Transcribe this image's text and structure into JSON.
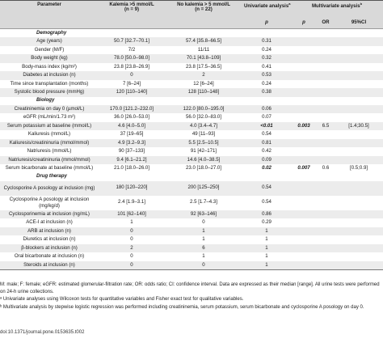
{
  "header": {
    "parameter": "Parameter",
    "kalemia_hi": "Kalemia >5 mmol/L",
    "n_hi": "(n = 9)",
    "kalemia_no": "No kalemia > 5 mmol/L",
    "n_no": "(n = 22)",
    "univariate": "Univariate analysis",
    "univariate_sup": "a",
    "multivariate": "Multivariate analysis",
    "multivariate_sup": "b",
    "p": "p",
    "p2": "p",
    "or": "OR",
    "ci": "95%CI"
  },
  "rows": [
    {
      "type": "section",
      "label": "Demography"
    },
    {
      "label": "Age (years)",
      "hi": "50.7 [32.7–70.1]",
      "no": "57.4 [35.8–66.5]",
      "p": "0.31",
      "mp": "",
      "or": "",
      "ci": ""
    },
    {
      "label": "Gender (M/F)",
      "hi": "7/2",
      "no": "11/11",
      "p": "0.24",
      "mp": "",
      "or": "",
      "ci": ""
    },
    {
      "label": "Body weight (kg)",
      "hi": "78.0 [50.0–98.0]",
      "no": "70.1 [43.8–109]",
      "p": "0.32",
      "mp": "",
      "or": "",
      "ci": ""
    },
    {
      "label": "Body-mass index (kg/m²)",
      "hi": "23.8 [23.8–26.9]",
      "no": "23.8 [17.5–36.5]",
      "p": "0.41",
      "mp": "",
      "or": "",
      "ci": ""
    },
    {
      "label": "Diabetes at inclusion (n)",
      "hi": "0",
      "no": "2",
      "p": "0.53",
      "mp": "",
      "or": "",
      "ci": ""
    },
    {
      "label": "Time since transplantation (months)",
      "hi": "7 [6–24]",
      "no": "12 [6–24]",
      "p": "0.24",
      "mp": "",
      "or": "",
      "ci": ""
    },
    {
      "label": "Systolic blood pressure (mmHg)",
      "hi": "120 [110–140]",
      "no": "128 [110–148]",
      "p": "0.38",
      "mp": "",
      "or": "",
      "ci": ""
    },
    {
      "type": "section",
      "label": "Biology"
    },
    {
      "label": "Creatininemia on day 0 (µmol/L)",
      "hi": "170.0 [121.2–232.0]",
      "no": "122.0 [80.0–195.0]",
      "p": "0.06",
      "mp": "",
      "or": "",
      "ci": ""
    },
    {
      "label": "eGFR (mL/min/1.73 m²)",
      "hi": "36.0 [26.0–53.0]",
      "no": "56.0 [32.0–83.0]",
      "p": "0.07",
      "mp": "",
      "or": "",
      "ci": ""
    },
    {
      "label": "Serum potassium at baseline (mmol/L)",
      "hi": "4.6 [4.0–5.0]",
      "no": "4.0 [3.4–4.7]",
      "p": "<0.01",
      "pbold": true,
      "mp": "0.003",
      "mpbold": true,
      "or": "6.5",
      "ci": "[1.4;30.5]"
    },
    {
      "label": "Kaliuresis (mmol/L)",
      "hi": "37 [19–65]",
      "no": "49 [11–93]",
      "p": "0.54",
      "mp": "",
      "or": "",
      "ci": ""
    },
    {
      "label": "Kaliuresis/creatininuria (mmol/mmol)",
      "hi": "4.9 [3.2–9.3]",
      "no": "5.5 [2.5–10.5]",
      "p": "0.81",
      "mp": "",
      "or": "",
      "ci": ""
    },
    {
      "label": "Natriuresis (mmol/L)",
      "hi": "90 [37–133]",
      "no": "91 [42–171]",
      "p": "0.42",
      "mp": "",
      "or": "",
      "ci": ""
    },
    {
      "label": "Natriuresis/creatininuria (mmol/mmol)",
      "hi": "9.4 [6.1–21.2]",
      "no": "14.6 [4.0–38.5]",
      "p": "0.09",
      "mp": "",
      "or": "",
      "ci": ""
    },
    {
      "label": "Serum bicarbonate at baseline (mmol/L)",
      "hi": "21.0 [18.0–26.0]",
      "no": "23.0 [18.0–27.0]",
      "p": "0.02",
      "pbold": true,
      "mp": "0.007",
      "mpbold": true,
      "or": "0.6",
      "ci": "[0.5;0.9]"
    },
    {
      "type": "section",
      "label": "Drug therapy"
    },
    {
      "label": "Cyclosporine A posology at inclusion (mg)",
      "hi": "180 [120–220]",
      "no": "200 [125–250]",
      "p": "0.54",
      "mp": "",
      "or": "",
      "ci": "",
      "tall": true
    },
    {
      "label": "Cyclosporine A posology at inclusion (mg/kg/d)",
      "hi": "2.4 [1.9–3.1]",
      "no": "2.5 [1.7–4.3]",
      "p": "0.54",
      "mp": "",
      "or": "",
      "ci": "",
      "tall": true
    },
    {
      "label": "Cyclosporinemia at inclusion (ng/mL)",
      "hi": "101 [62–140]",
      "no": "92 [63–146]",
      "p": "0.86",
      "mp": "",
      "or": "",
      "ci": ""
    },
    {
      "label": "ACE-I at inclusion (n)",
      "hi": "1",
      "no": "0",
      "p": "0.29",
      "mp": "",
      "or": "",
      "ci": ""
    },
    {
      "label": "ARB at inclusion (n)",
      "hi": "0",
      "no": "1",
      "p": "1",
      "mp": "",
      "or": "",
      "ci": ""
    },
    {
      "label": "Diuretics at inclusion (n)",
      "hi": "0",
      "no": "1",
      "p": "1",
      "mp": "",
      "or": "",
      "ci": ""
    },
    {
      "label": "β-blockers at inclusion (n)",
      "hi": "2",
      "no": "6",
      "p": "1",
      "mp": "",
      "or": "",
      "ci": ""
    },
    {
      "label": "Oral bicarbonate at inclusion (n)",
      "hi": "0",
      "no": "1",
      "p": "1",
      "mp": "",
      "or": "",
      "ci": ""
    },
    {
      "label": "Steroids at inclusion (n)",
      "hi": "0",
      "no": "0",
      "p": "1",
      "mp": "",
      "or": "",
      "ci": ""
    }
  ],
  "notes": [
    "M: male; F: female; eGFR: estimated glomerular-filtration rate; OR: odds ratio; CI: confidence interval. Data are expressed as their median [range]. All urine tests were performed on 24-h urine collections.",
    "ᵃ Univariate analyses using Wilcoxon tests for quantitative variables and Fisher exact test for qualitative variables.",
    "ᵇ Multivariate analysis by stepwise logistic regression was performed including creatininemia, serum potassium, serum bicarbonate and cyclosporine A posology on day 0."
  ],
  "doi": "doi:10.1371/journal.pone.0153635.t002"
}
